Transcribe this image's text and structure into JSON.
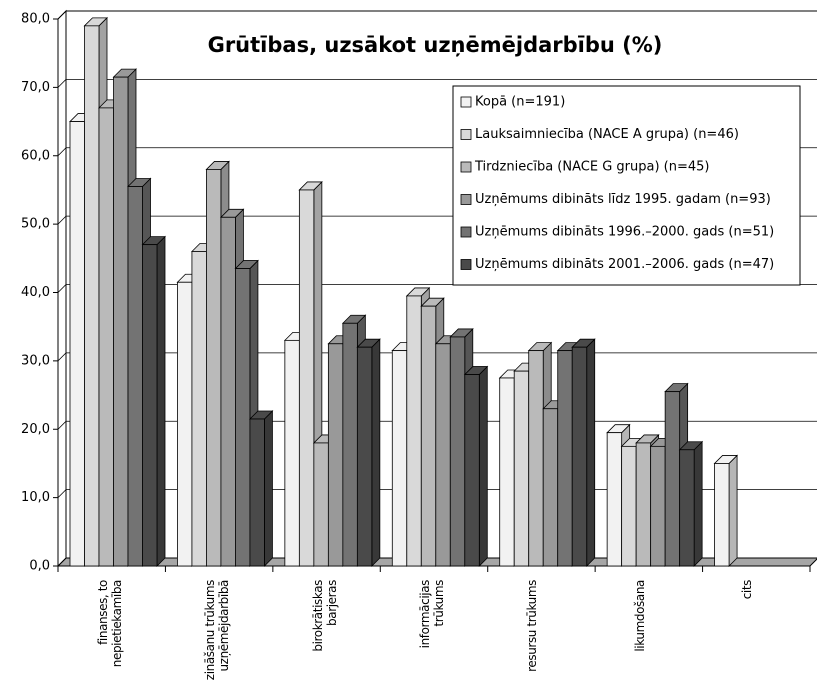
{
  "chart_data": {
    "type": "bar3d",
    "title": "Grūtības, uzsākot uzņēmējdarbību (%)",
    "categories": [
      "finanses, to nepietiekamība",
      "zināšanu trūkums uzņēmējdarbībā",
      "birokrātiskas barjeras",
      "informācijas trūkums",
      "resursu trūkums",
      "likumdošana",
      "cits"
    ],
    "series": [
      {
        "name": "Kopā (n=191)",
        "color": "#f2f2f2",
        "values": [
          65,
          41.5,
          33,
          31.5,
          27.5,
          19.5,
          15
        ]
      },
      {
        "name": "Lauksaimniecība (NACE A grupa) (n=46)",
        "color": "#d9d9d9",
        "values": [
          79,
          46,
          55,
          39.5,
          28.5,
          17.5,
          null
        ]
      },
      {
        "name": "Tirdzniecība (NACE G grupa) (n=45)",
        "color": "#bababa",
        "values": [
          67,
          58,
          18,
          38,
          31.5,
          18,
          null
        ]
      },
      {
        "name": "Uzņēmums dibināts līdz 1995. gadam (n=93)",
        "color": "#999999",
        "values": [
          71.5,
          51,
          32.5,
          32.5,
          23,
          17.5,
          null
        ]
      },
      {
        "name": "Uzņēmums dibināts 1996.–2000. gads (n=51)",
        "color": "#737373",
        "values": [
          55.5,
          43.5,
          35.5,
          33.5,
          31.5,
          25.5,
          null
        ]
      },
      {
        "name": "Uzņēmums dibināts 2001.–2006. gads (n=47)",
        "color": "#4a4a4a",
        "values": [
          47,
          21.5,
          32,
          28,
          32,
          17,
          null
        ]
      }
    ],
    "ylim": [
      0,
      80
    ],
    "yticks": [
      {
        "value": 0,
        "label": "0,0"
      },
      {
        "value": 10,
        "label": "10,0"
      },
      {
        "value": 20,
        "label": "20,0"
      },
      {
        "value": 30,
        "label": "30,0"
      },
      {
        "value": 40,
        "label": "40,0"
      },
      {
        "value": 50,
        "label": "50,0"
      },
      {
        "value": 60,
        "label": "60,0"
      },
      {
        "value": 70,
        "label": "70,0"
      },
      {
        "value": 80,
        "label": "80,0"
      }
    ],
    "grid": true,
    "legend": "upper right"
  }
}
